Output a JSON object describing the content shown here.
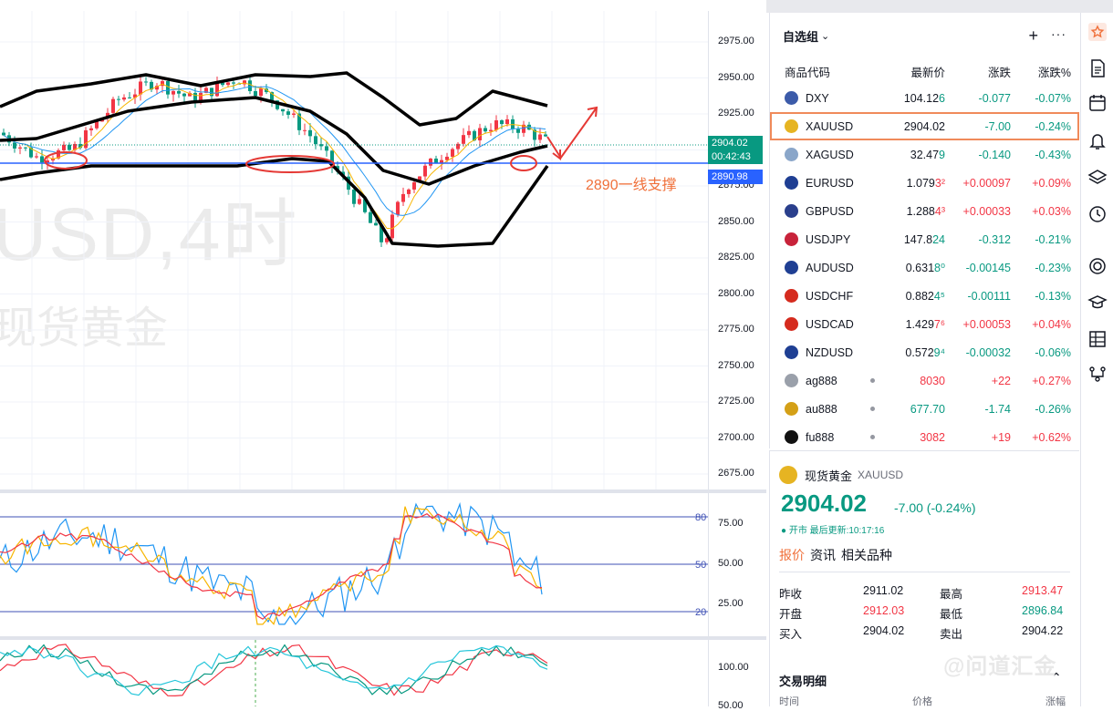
{
  "chart": {
    "watermark_symbol": "USD,4时",
    "watermark_name": "现货黄金",
    "annotation": "2890一线支撑",
    "price_axis": [
      "2975.00",
      "2950.00",
      "2925.00",
      "2900.00",
      "2875.00",
      "2850.00",
      "2825.00",
      "2800.00",
      "2775.00",
      "2750.00",
      "2725.00",
      "2700.00",
      "2675.00"
    ],
    "current_price": "2904.02",
    "countdown": "00:42:43",
    "support_price": "2890.98",
    "osc_axis": [
      "75.00",
      "50.00",
      "25.00"
    ],
    "osc_levels": [
      "80",
      "50",
      "20"
    ],
    "kdj_axis": [
      "100.00",
      "50.00"
    ]
  },
  "watchlist": {
    "title": "自选组",
    "columns": {
      "symbol": "商品代码",
      "last": "最新价",
      "change": "涨跌",
      "pct": "涨跌%"
    },
    "rows": [
      {
        "sym": "DXY",
        "last_main": "104.12",
        "last_tail": "6",
        "chg": "-0.077",
        "pct": "-0.07%",
        "dir": "down",
        "flag": "#3c5ba9"
      },
      {
        "sym": "XAUUSD",
        "last_main": "2904.02",
        "last_tail": "",
        "chg": "-7.00",
        "pct": "-0.24%",
        "dir": "down",
        "flag": "#e6b422"
      },
      {
        "sym": "XAGUSD",
        "last_main": "32.47",
        "last_tail": "9",
        "chg": "-0.140",
        "pct": "-0.43%",
        "dir": "down",
        "flag": "#8aa6c9"
      },
      {
        "sym": "EURUSD",
        "last_main": "1.079",
        "last_tail": "3²",
        "chg": "+0.00097",
        "pct": "+0.09%",
        "dir": "up",
        "flag": "#1f3f93"
      },
      {
        "sym": "GBPUSD",
        "last_main": "1.288",
        "last_tail": "4³",
        "chg": "+0.00033",
        "pct": "+0.03%",
        "dir": "up",
        "flag": "#2a3f8c"
      },
      {
        "sym": "USDJPY",
        "last_main": "147.8",
        "last_tail": "24",
        "chg": "-0.312",
        "pct": "-0.21%",
        "dir": "down",
        "flag": "#c8233a"
      },
      {
        "sym": "AUDUSD",
        "last_main": "0.631",
        "last_tail": "8⁰",
        "chg": "-0.00145",
        "pct": "-0.23%",
        "dir": "down",
        "flag": "#1f3f93"
      },
      {
        "sym": "USDCHF",
        "last_main": "0.882",
        "last_tail": "4⁵",
        "chg": "-0.00111",
        "pct": "-0.13%",
        "dir": "down",
        "flag": "#d52b1e"
      },
      {
        "sym": "USDCAD",
        "last_main": "1.429",
        "last_tail": "7⁶",
        "chg": "+0.00053",
        "pct": "+0.04%",
        "dir": "up",
        "flag": "#d52b1e"
      },
      {
        "sym": "NZDUSD",
        "last_main": "0.572",
        "last_tail": "9⁴",
        "chg": "-0.00032",
        "pct": "-0.06%",
        "dir": "down",
        "flag": "#1f3f93"
      },
      {
        "sym": "ag888",
        "last_main": "8030",
        "last_tail": "",
        "chg": "+22",
        "pct": "+0.27%",
        "dir": "up",
        "flag": "#9aa0aa"
      },
      {
        "sym": "au888",
        "last_main": "677.",
        "last_tail": "70",
        "chg": "-1.74",
        "pct": "-0.26%",
        "dir": "down",
        "flag": "#d4a017"
      },
      {
        "sym": "fu888",
        "last_main": "3082",
        "last_tail": "",
        "chg": "+19",
        "pct": "+0.62%",
        "dir": "up",
        "flag": "#111111"
      }
    ]
  },
  "details": {
    "name": "现货黄金",
    "symbol": "XAUUSD",
    "price": "2904.02",
    "change": "-7.00 (-0.24%)",
    "status": "● 开市 最后更新:10:17:16",
    "tabs": [
      "报价",
      "资讯",
      "相关品种"
    ],
    "stats": {
      "prev_close_label": "昨收",
      "prev_close": "2911.02",
      "high_label": "最高",
      "high": "2913.47",
      "open_label": "开盘",
      "open": "2912.03",
      "low_label": "最低",
      "low": "2896.84",
      "bid_label": "买入",
      "bid": "2904.02",
      "ask_label": "卖出",
      "ask": "2904.22"
    },
    "trades_title": "交易明细",
    "trades_cols": {
      "time": "时间",
      "price": "价格",
      "change": "涨幅"
    }
  },
  "watermark": "@问道汇金",
  "toolbar_icons": [
    "watchlist-icon",
    "news-icon",
    "calendar-icon",
    "alert-icon",
    "layers-icon",
    "history-icon",
    "copyright-icon",
    "education-icon",
    "grid-icon",
    "network-icon"
  ]
}
